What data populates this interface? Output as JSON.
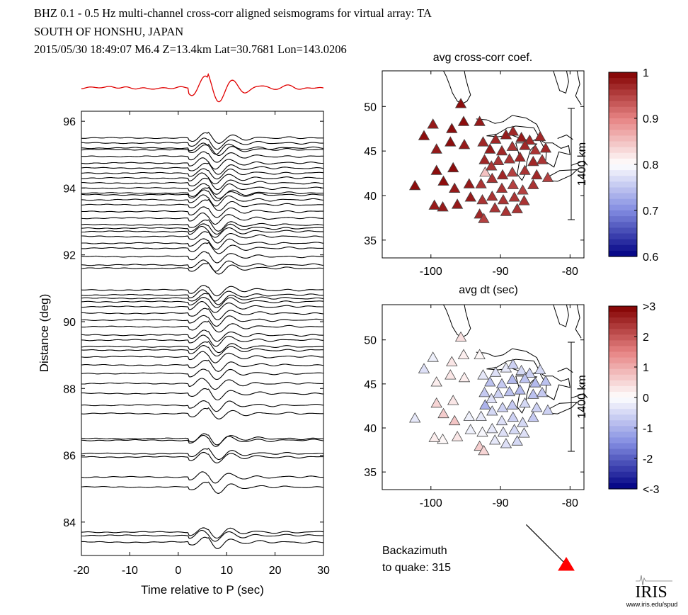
{
  "header": {
    "line1": "BHZ  0.1 - 0.5 Hz  multi-channel cross-corr aligned seismograms for virtual array: TA",
    "line2": "SOUTH OF HONSHU, JAPAN",
    "line3": "2015/05/30  18:49:07  M6.4  Z=13.4km Lat=30.7681 Lon=143.0206"
  },
  "colors": {
    "stack_trace": "#e00000",
    "trace": "#000000",
    "backazimuth_marker": "#ff0000"
  },
  "chart_data": [
    {
      "type": "line",
      "xlabel": "Time relative to P (sec)",
      "ylabel": "Distance (deg)",
      "xlim": [
        -20,
        30
      ],
      "ylim": [
        83,
        96.3
      ],
      "xticks": [
        "-20",
        "-10",
        "0",
        "10",
        "20",
        "30"
      ],
      "yticks": [
        "84",
        "86",
        "88",
        "90",
        "92",
        "94",
        "96"
      ],
      "trace_distances": [
        95.5,
        95.35,
        95.2,
        95.15,
        94.95,
        94.75,
        94.6,
        94.45,
        94.3,
        94.15,
        94.0,
        93.85,
        93.8,
        93.65,
        93.5,
        93.3,
        93.1,
        92.9,
        92.8,
        92.7,
        92.55,
        92.35,
        92.2,
        91.95,
        91.7,
        91.6,
        90.95,
        90.8,
        90.7,
        90.6,
        90.45,
        90.25,
        90.05,
        89.85,
        89.6,
        89.45,
        89.25,
        89.15,
        88.95,
        88.7,
        88.45,
        88.15,
        87.85,
        87.5,
        87.25,
        86.5,
        86.45,
        86.05,
        85.95,
        85.35,
        85.05,
        83.7,
        83.6,
        83.4
      ],
      "stack_trace": "cross-correlation aligned stack",
      "grid": false
    },
    {
      "type": "scatter",
      "title": "avg cross-corr coef.",
      "xlim": [
        -107,
        -78
      ],
      "ylim": [
        33,
        54
      ],
      "xticks": [
        "-100",
        "-90",
        "-80"
      ],
      "yticks": [
        "35",
        "40",
        "45",
        "50"
      ],
      "scale_label": "1400 km",
      "colorbar": {
        "min": 0.6,
        "max": 1.0,
        "ticks": [
          "1",
          "0.9",
          "0.8",
          "0.7",
          "0.6"
        ]
      },
      "stations": [
        {
          "lon": -95.7,
          "lat": 50.3,
          "cc": 0.99
        },
        {
          "lon": -99.7,
          "lat": 48.0,
          "cc": 0.98
        },
        {
          "lon": -97.0,
          "lat": 47.5,
          "cc": 0.99
        },
        {
          "lon": -95.3,
          "lat": 48.3,
          "cc": 0.99
        },
        {
          "lon": -93.0,
          "lat": 48.3,
          "cc": 0.98
        },
        {
          "lon": -101.0,
          "lat": 46.7,
          "cc": 0.99
        },
        {
          "lon": -99.2,
          "lat": 45.2,
          "cc": 0.98
        },
        {
          "lon": -97.2,
          "lat": 46.0,
          "cc": 0.99
        },
        {
          "lon": -95.2,
          "lat": 45.7,
          "cc": 0.98
        },
        {
          "lon": -92.5,
          "lat": 46.0,
          "cc": 0.97
        },
        {
          "lon": -90.7,
          "lat": 46.3,
          "cc": 0.97
        },
        {
          "lon": -89.2,
          "lat": 46.8,
          "cc": 0.98
        },
        {
          "lon": -88.2,
          "lat": 47.2,
          "cc": 0.97
        },
        {
          "lon": -87.0,
          "lat": 46.5,
          "cc": 0.98
        },
        {
          "lon": -85.8,
          "lat": 46.2,
          "cc": 0.97
        },
        {
          "lon": -84.3,
          "lat": 46.6,
          "cc": 0.97
        },
        {
          "lon": -91.5,
          "lat": 45.2,
          "cc": 0.98
        },
        {
          "lon": -89.8,
          "lat": 45.0,
          "cc": 0.97
        },
        {
          "lon": -88.3,
          "lat": 45.5,
          "cc": 0.96
        },
        {
          "lon": -86.5,
          "lat": 45.6,
          "cc": 0.97
        },
        {
          "lon": -85.0,
          "lat": 45.1,
          "cc": 0.96
        },
        {
          "lon": -83.5,
          "lat": 45.3,
          "cc": 0.97
        },
        {
          "lon": -92.3,
          "lat": 44.0,
          "cc": 0.97
        },
        {
          "lon": -90.3,
          "lat": 43.9,
          "cc": 0.96
        },
        {
          "lon": -88.7,
          "lat": 44.1,
          "cc": 0.96
        },
        {
          "lon": -87.2,
          "lat": 44.3,
          "cc": 0.97
        },
        {
          "lon": -85.3,
          "lat": 43.8,
          "cc": 0.97
        },
        {
          "lon": -84.0,
          "lat": 44.0,
          "cc": 0.96
        },
        {
          "lon": -99.2,
          "lat": 42.8,
          "cc": 0.99
        },
        {
          "lon": -96.8,
          "lat": 43.1,
          "cc": 0.99
        },
        {
          "lon": -92.2,
          "lat": 42.6,
          "cc": 0.85
        },
        {
          "lon": -91.3,
          "lat": 43.3,
          "cc": 0.96
        },
        {
          "lon": -89.7,
          "lat": 42.3,
          "cc": 0.97
        },
        {
          "lon": -88.3,
          "lat": 42.6,
          "cc": 0.95
        },
        {
          "lon": -86.5,
          "lat": 42.8,
          "cc": 0.96
        },
        {
          "lon": -84.8,
          "lat": 42.3,
          "cc": 0.97
        },
        {
          "lon": -83.2,
          "lat": 42.0,
          "cc": 0.95
        },
        {
          "lon": -102.3,
          "lat": 41.1,
          "cc": 0.99
        },
        {
          "lon": -98.2,
          "lat": 41.6,
          "cc": 0.99
        },
        {
          "lon": -96.6,
          "lat": 40.8,
          "cc": 0.98
        },
        {
          "lon": -94.5,
          "lat": 41.3,
          "cc": 0.98
        },
        {
          "lon": -92.8,
          "lat": 41.3,
          "cc": 0.96
        },
        {
          "lon": -91.2,
          "lat": 41.9,
          "cc": 0.96
        },
        {
          "lon": -89.8,
          "lat": 40.8,
          "cc": 0.96
        },
        {
          "lon": -88.2,
          "lat": 41.2,
          "cc": 0.95
        },
        {
          "lon": -86.8,
          "lat": 40.6,
          "cc": 0.95
        },
        {
          "lon": -85.3,
          "lat": 41.2,
          "cc": 0.96
        },
        {
          "lon": -94.3,
          "lat": 39.8,
          "cc": 0.98
        },
        {
          "lon": -92.6,
          "lat": 39.5,
          "cc": 0.96
        },
        {
          "lon": -91.2,
          "lat": 39.9,
          "cc": 0.96
        },
        {
          "lon": -89.6,
          "lat": 39.5,
          "cc": 0.96
        },
        {
          "lon": -88.0,
          "lat": 39.8,
          "cc": 0.96
        },
        {
          "lon": -86.6,
          "lat": 39.4,
          "cc": 0.96
        },
        {
          "lon": -98.3,
          "lat": 38.7,
          "cc": 0.98
        },
        {
          "lon": -96.2,
          "lat": 39.0,
          "cc": 0.98
        },
        {
          "lon": -99.5,
          "lat": 38.9,
          "cc": 0.98
        },
        {
          "lon": -93.0,
          "lat": 37.9,
          "cc": 0.97
        },
        {
          "lon": -90.8,
          "lat": 38.6,
          "cc": 0.96
        },
        {
          "lon": -89.2,
          "lat": 38.2,
          "cc": 0.96
        },
        {
          "lon": -87.6,
          "lat": 38.5,
          "cc": 0.96
        },
        {
          "lon": -92.4,
          "lat": 37.4,
          "cc": 0.95
        }
      ]
    },
    {
      "type": "scatter",
      "title": "avg dt (sec)",
      "xlim": [
        -107,
        -78
      ],
      "ylim": [
        33,
        54
      ],
      "xticks": [
        "-100",
        "-90",
        "-80"
      ],
      "yticks": [
        "35",
        "40",
        "45",
        "50"
      ],
      "scale_label": "1400 km",
      "colorbar": {
        "min": -3,
        "max": 3,
        "ticks": [
          ">3",
          "2",
          "1",
          "0",
          "-1",
          "-2",
          "<-3"
        ]
      },
      "stations": [
        {
          "lon": -95.7,
          "lat": 50.3,
          "dt": 0.4
        },
        {
          "lon": -99.7,
          "lat": 48.0,
          "dt": -0.2
        },
        {
          "lon": -97.0,
          "lat": 47.5,
          "dt": 0.3
        },
        {
          "lon": -95.3,
          "lat": 48.3,
          "dt": 0.2
        },
        {
          "lon": -93.0,
          "lat": 48.3,
          "dt": 0.1
        },
        {
          "lon": -101.0,
          "lat": 46.7,
          "dt": -0.4
        },
        {
          "lon": -99.2,
          "lat": 45.2,
          "dt": 0.2
        },
        {
          "lon": -97.2,
          "lat": 46.0,
          "dt": 0.3
        },
        {
          "lon": -95.2,
          "lat": 45.7,
          "dt": 0.2
        },
        {
          "lon": -92.5,
          "lat": 46.0,
          "dt": -0.3
        },
        {
          "lon": -90.7,
          "lat": 46.3,
          "dt": -0.4
        },
        {
          "lon": -89.2,
          "lat": 46.8,
          "dt": -0.3
        },
        {
          "lon": -88.2,
          "lat": 47.2,
          "dt": -0.6
        },
        {
          "lon": -87.0,
          "lat": 46.5,
          "dt": -0.5
        },
        {
          "lon": -85.8,
          "lat": 46.2,
          "dt": -0.6
        },
        {
          "lon": -84.3,
          "lat": 46.6,
          "dt": -0.5
        },
        {
          "lon": -91.5,
          "lat": 45.2,
          "dt": -0.8
        },
        {
          "lon": -89.8,
          "lat": 45.0,
          "dt": -0.7
        },
        {
          "lon": -88.3,
          "lat": 45.5,
          "dt": -0.9
        },
        {
          "lon": -86.5,
          "lat": 45.6,
          "dt": -0.8
        },
        {
          "lon": -85.0,
          "lat": 45.1,
          "dt": -0.9
        },
        {
          "lon": -83.5,
          "lat": 45.3,
          "dt": -0.8
        },
        {
          "lon": -92.3,
          "lat": 44.0,
          "dt": -0.7
        },
        {
          "lon": -90.3,
          "lat": 43.9,
          "dt": -0.6
        },
        {
          "lon": -88.7,
          "lat": 44.1,
          "dt": -0.8
        },
        {
          "lon": -87.2,
          "lat": 44.3,
          "dt": -0.9
        },
        {
          "lon": -85.3,
          "lat": 43.8,
          "dt": -0.8
        },
        {
          "lon": -84.0,
          "lat": 44.0,
          "dt": -0.7
        },
        {
          "lon": -99.2,
          "lat": 42.8,
          "dt": 0.5
        },
        {
          "lon": -96.8,
          "lat": 43.1,
          "dt": 0.3
        },
        {
          "lon": -92.2,
          "lat": 42.6,
          "dt": -1.0
        },
        {
          "lon": -91.3,
          "lat": 43.3,
          "dt": -0.4
        },
        {
          "lon": -89.7,
          "lat": 42.3,
          "dt": -0.6
        },
        {
          "lon": -88.3,
          "lat": 42.6,
          "dt": -0.7
        },
        {
          "lon": -86.5,
          "lat": 42.8,
          "dt": -0.5
        },
        {
          "lon": -84.8,
          "lat": 42.3,
          "dt": -0.6
        },
        {
          "lon": -83.2,
          "lat": 42.0,
          "dt": -0.6
        },
        {
          "lon": -102.3,
          "lat": 41.1,
          "dt": -0.3
        },
        {
          "lon": -98.2,
          "lat": 41.6,
          "dt": 0.6
        },
        {
          "lon": -96.6,
          "lat": 40.8,
          "dt": 0.7
        },
        {
          "lon": -94.5,
          "lat": 41.3,
          "dt": -0.2
        },
        {
          "lon": -92.8,
          "lat": 41.3,
          "dt": -0.3
        },
        {
          "lon": -91.2,
          "lat": 41.9,
          "dt": -0.5
        },
        {
          "lon": -89.8,
          "lat": 40.8,
          "dt": -0.4
        },
        {
          "lon": -88.2,
          "lat": 41.2,
          "dt": -0.6
        },
        {
          "lon": -86.8,
          "lat": 40.6,
          "dt": -0.5
        },
        {
          "lon": -85.3,
          "lat": 41.2,
          "dt": -0.7
        },
        {
          "lon": -94.3,
          "lat": 39.8,
          "dt": -0.2
        },
        {
          "lon": -92.6,
          "lat": 39.5,
          "dt": -0.1
        },
        {
          "lon": -91.2,
          "lat": 39.9,
          "dt": -0.3
        },
        {
          "lon": -89.6,
          "lat": 39.5,
          "dt": -0.4
        },
        {
          "lon": -88.0,
          "lat": 39.8,
          "dt": -0.5
        },
        {
          "lon": -86.6,
          "lat": 39.4,
          "dt": -0.4
        },
        {
          "lon": -98.3,
          "lat": 38.7,
          "dt": 0.1
        },
        {
          "lon": -96.2,
          "lat": 39.0,
          "dt": 0.3
        },
        {
          "lon": -99.5,
          "lat": 38.9,
          "dt": 0.2
        },
        {
          "lon": -93.0,
          "lat": 37.9,
          "dt": 0.6
        },
        {
          "lon": -90.8,
          "lat": 38.6,
          "dt": -0.3
        },
        {
          "lon": -89.2,
          "lat": 38.2,
          "dt": -0.4
        },
        {
          "lon": -87.6,
          "lat": 38.5,
          "dt": -0.5
        },
        {
          "lon": -92.4,
          "lat": 37.4,
          "dt": 0.5
        }
      ]
    }
  ],
  "backazimuth": {
    "label_line1": "Backazimuth",
    "label_line2": "to quake:  315",
    "degrees": 315
  },
  "logo": {
    "text": "IRIS",
    "url_text": "www.iris.edu/spud"
  }
}
